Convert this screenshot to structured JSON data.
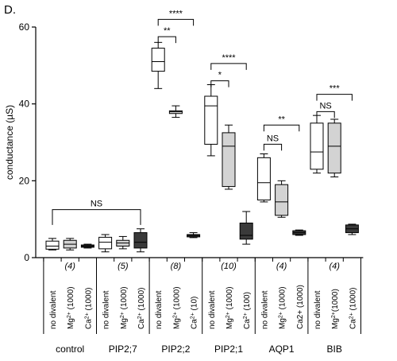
{
  "panel_label": "D.",
  "chart_data": {
    "type": "box",
    "ylabel": "conductance (µS)",
    "ylim": [
      0,
      60
    ],
    "yticks": [
      0,
      20,
      40,
      60
    ],
    "groups": [
      {
        "name": "control",
        "n_label": "(4)",
        "conditions": [
          {
            "label": "no divalent",
            "fill": "#ffffff",
            "whisker_low": 2.0,
            "q1": 2.2,
            "median": 3.0,
            "q3": 4.3,
            "whisker_high": 5.0
          },
          {
            "label": "Mg2+ (1000)",
            "fill": "#d3d3d3",
            "whisker_low": 2.0,
            "q1": 2.5,
            "median": 3.5,
            "q3": 4.5,
            "whisker_high": 5.0
          },
          {
            "label": "Ca2+ (1000)",
            "fill": "#3a3a3a",
            "whisker_low": 2.5,
            "q1": 2.7,
            "median": 3.0,
            "q3": 3.3,
            "whisker_high": 3.5
          }
        ]
      },
      {
        "name": "PIP2;7",
        "n_label": "(5)",
        "conditions": [
          {
            "label": "no divalent",
            "fill": "#ffffff",
            "whisker_low": 1.5,
            "q1": 2.3,
            "median": 4.0,
            "q3": 5.3,
            "whisker_high": 6.0
          },
          {
            "label": "Mg2+ (1000)",
            "fill": "#d3d3d3",
            "whisker_low": 2.3,
            "q1": 3.0,
            "median": 3.8,
            "q3": 4.5,
            "whisker_high": 5.5
          },
          {
            "label": "Ca2+ (1000)",
            "fill": "#3a3a3a",
            "whisker_low": 1.5,
            "q1": 2.5,
            "median": 4.0,
            "q3": 6.5,
            "whisker_high": 7.5
          }
        ]
      },
      {
        "name": "PIP2;2",
        "n_label": "(8)",
        "conditions": [
          {
            "label": "no divalent",
            "fill": "#ffffff",
            "whisker_low": 44.0,
            "q1": 48.5,
            "median": 51.0,
            "q3": 54.5,
            "whisker_high": 56.0
          },
          {
            "label": "Mg2+ (1000)",
            "fill": "#d3d3d3",
            "whisker_low": 36.5,
            "q1": 37.5,
            "median": 38.0,
            "q3": 38.2,
            "whisker_high": 39.5
          },
          {
            "label": "Ca2+ (10)",
            "fill": "#3a3a3a",
            "whisker_low": 5.2,
            "q1": 5.4,
            "median": 5.8,
            "q3": 6.0,
            "whisker_high": 6.5
          }
        ]
      },
      {
        "name": "PIP2;1",
        "n_label": "(10)",
        "conditions": [
          {
            "label": "no divalent",
            "fill": "#ffffff",
            "whisker_low": 26.5,
            "q1": 29.5,
            "median": 39.5,
            "q3": 42.0,
            "whisker_high": 45.0
          },
          {
            "label": "Mg2+ (1000)",
            "fill": "#d3d3d3",
            "whisker_low": 17.8,
            "q1": 18.5,
            "median": 29.0,
            "q3": 32.5,
            "whisker_high": 34.5
          },
          {
            "label": "Ca2+ (100)",
            "fill": "#3a3a3a",
            "whisker_low": 3.5,
            "q1": 4.8,
            "median": 5.8,
            "q3": 9.0,
            "whisker_high": 12.0
          }
        ]
      },
      {
        "name": "AQP1",
        "n_label": "(4)",
        "conditions": [
          {
            "label": "no divalent",
            "fill": "#ffffff",
            "whisker_low": 14.5,
            "q1": 15.0,
            "median": 19.5,
            "q3": 26.0,
            "whisker_high": 27.0
          },
          {
            "label": "Mg2+ (1000)",
            "fill": "#d3d3d3",
            "whisker_low": 10.5,
            "q1": 11.0,
            "median": 14.5,
            "q3": 19.0,
            "whisker_high": 20.0
          },
          {
            "label": "Ca2+ (1000)",
            "fill": "#3a3a3a",
            "whisker_low": 5.8,
            "q1": 6.0,
            "median": 6.5,
            "q3": 7.0,
            "whisker_high": 7.2
          }
        ]
      },
      {
        "name": "BIB",
        "n_label": "(4)",
        "conditions": [
          {
            "label": "no divalent",
            "fill": "#ffffff",
            "whisker_low": 22.0,
            "q1": 23.0,
            "median": 27.5,
            "q3": 35.0,
            "whisker_high": 37.0
          },
          {
            "label": "Mg2+ (1000)",
            "fill": "#d3d3d3",
            "whisker_low": 21.0,
            "q1": 22.0,
            "median": 29.0,
            "q3": 35.0,
            "whisker_high": 36.0
          },
          {
            "label": "Ca2+ (1000)",
            "fill": "#3a3a3a",
            "whisker_low": 6.0,
            "q1": 6.5,
            "median": 7.5,
            "q3": 8.5,
            "whisker_high": 8.7
          }
        ]
      }
    ],
    "x_tick_labels": [
      {
        "main": "no divalent",
        "sup": "",
        "suffix": ""
      },
      {
        "main": "Mg",
        "sup": "2+",
        "suffix": " (1000)"
      },
      {
        "main": "Ca",
        "sup": "2+",
        "suffix": " (1000)"
      },
      {
        "main": "no divalent",
        "sup": "",
        "suffix": ""
      },
      {
        "main": "Mg",
        "sup": "2+",
        "suffix": " (1000)"
      },
      {
        "main": "Ca",
        "sup": "2+",
        "suffix": " (1000)"
      },
      {
        "main": "no divalent",
        "sup": "",
        "suffix": ""
      },
      {
        "main": "Mg",
        "sup": "2+",
        "suffix": " (1000)"
      },
      {
        "main": "Ca",
        "sup": "2+",
        "suffix": "   (10)"
      },
      {
        "main": "no divalent",
        "sup": "",
        "suffix": ""
      },
      {
        "main": "Mg",
        "sup": "2+",
        "suffix": " (1000)"
      },
      {
        "main": "Ca",
        "sup": "2+",
        "suffix": "  (100)"
      },
      {
        "main": "no divalent",
        "sup": "",
        "suffix": ""
      },
      {
        "main": "Mg",
        "sup": "2+",
        "suffix": " (1000)"
      },
      {
        "main": "Ca2+ (1000)",
        "sup": "",
        "suffix": ""
      },
      {
        "main": "no divalent",
        "sup": "",
        "suffix": ""
      },
      {
        "main": "Mg",
        "sup": "2+",
        "suffix": "(1000)"
      },
      {
        "main": "Ca",
        "sup": "2+",
        "suffix": " (1000)"
      }
    ],
    "annotations": [
      {
        "text": "NS",
        "group": "control",
        "from": 0,
        "to": 5,
        "y_data": 12.5,
        "drop_data": 4
      },
      {
        "text": "****",
        "group": "PIP2;2",
        "from": 6,
        "to": 8,
        "y_data": 62.0
      },
      {
        "text": "**",
        "group": "PIP2;2",
        "from": 6,
        "to": 7,
        "y_data": 57.5
      },
      {
        "text": "****",
        "group": "PIP2;1",
        "from": 9,
        "to": 11,
        "y_data": 50.5
      },
      {
        "text": "*",
        "group": "PIP2;1",
        "from": 9,
        "to": 10,
        "y_data": 46.0
      },
      {
        "text": "**",
        "group": "AQP1",
        "from": 12,
        "to": 14,
        "y_data": 34.5
      },
      {
        "text": "NS",
        "group": "AQP1",
        "from": 12,
        "to": 13,
        "y_data": 29.5
      },
      {
        "text": "***",
        "group": "BIB",
        "from": 15,
        "to": 17,
        "y_data": 42.5
      },
      {
        "text": "NS",
        "group": "BIB",
        "from": 15,
        "to": 16,
        "y_data": 38.0
      }
    ]
  }
}
